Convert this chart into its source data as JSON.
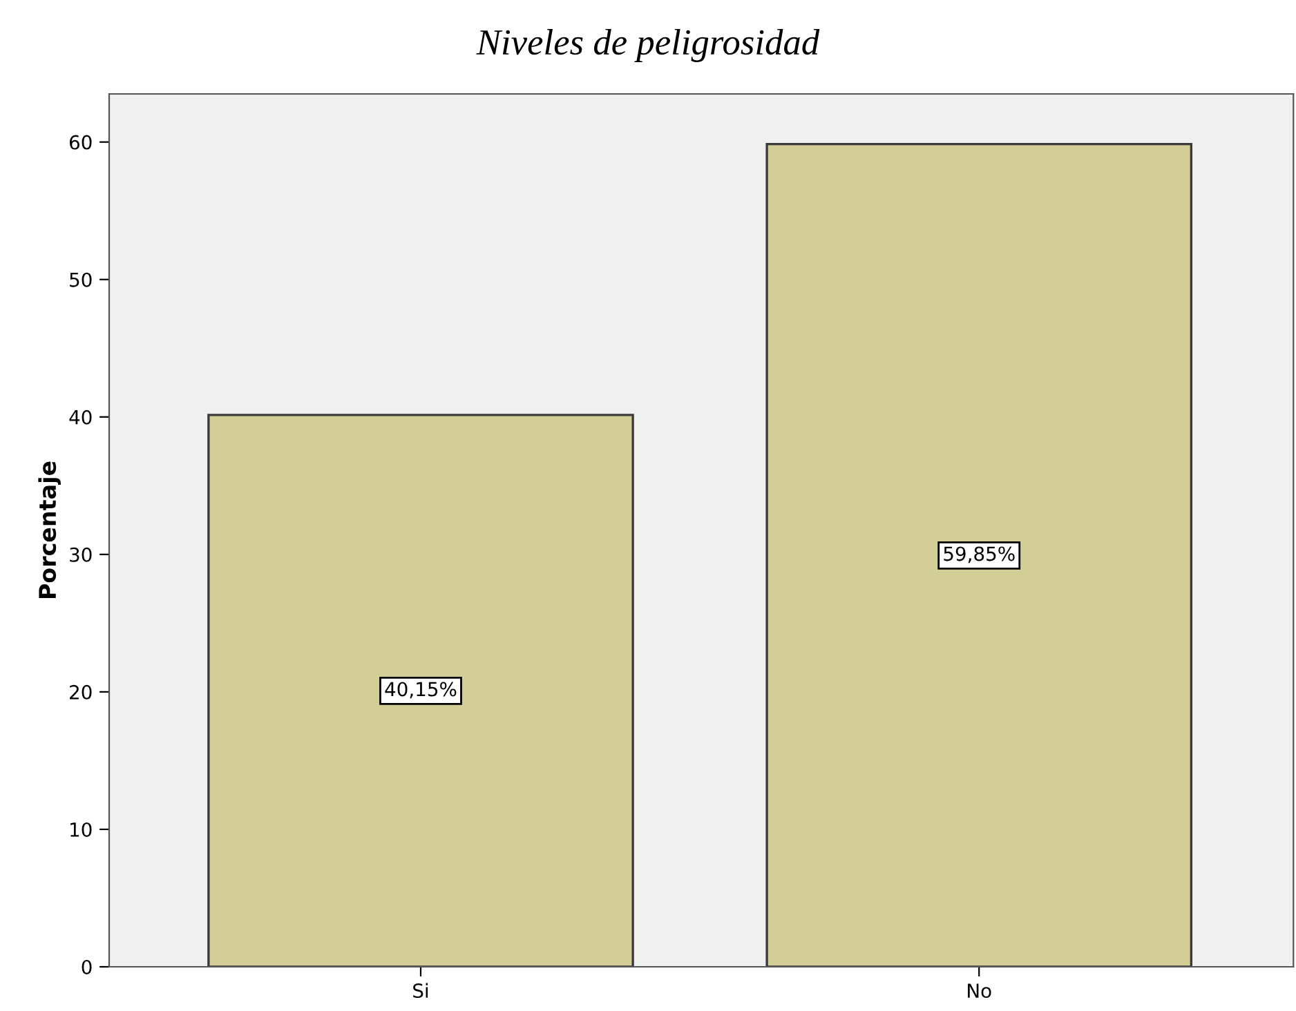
{
  "chart_data": {
    "type": "bar",
    "title": "Niveles de peligrosidad",
    "ylabel": "Porcentaje",
    "categories": [
      "Si",
      "No"
    ],
    "values": [
      40.15,
      59.85
    ],
    "value_labels": [
      "40,15%",
      "59,85%"
    ],
    "color": "#d3ce97",
    "ylim": [
      0,
      63.5
    ],
    "yticks": [
      0,
      10,
      20,
      30,
      40,
      50,
      60
    ],
    "grid": false,
    "legend": false
  }
}
